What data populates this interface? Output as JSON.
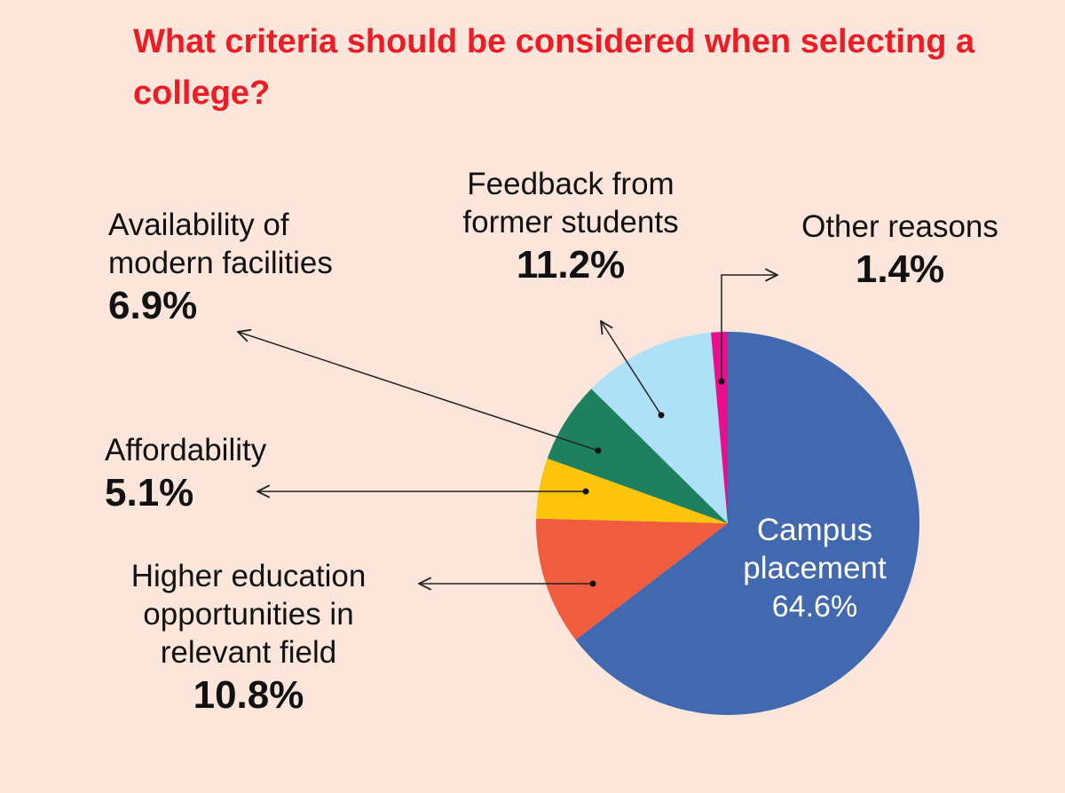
{
  "title": "What criteria should be considered when selecting a college?",
  "colors": {
    "background": "#fce6dc",
    "title": "#ee1c25"
  },
  "chart_data": {
    "type": "pie",
    "title": "What criteria should be considered when selecting a college?",
    "start_angle_deg": 0,
    "direction": "clockwise",
    "slices": [
      {
        "label": "Campus placement",
        "value": 64.6,
        "display": "64.6%",
        "color": "#4268b0"
      },
      {
        "label": "Higher education opportunities in relevant field",
        "value": 10.8,
        "display": "10.8%",
        "color": "#ef5c3e"
      },
      {
        "label": "Affordability",
        "value": 5.1,
        "display": "5.1%",
        "color": "#fcc40a"
      },
      {
        "label": "Availability of modern facilities",
        "value": 6.9,
        "display": "6.9%",
        "color": "#1f8060"
      },
      {
        "label": "Feedback from former students",
        "value": 11.2,
        "display": "11.2%",
        "color": "#aee0f8"
      },
      {
        "label": "Other reasons",
        "value": 1.4,
        "display": "1.4%",
        "color": "#e80e8c"
      }
    ]
  },
  "labels": {
    "campus_name": "Campus\nplacement",
    "campus_value": "64.6%",
    "higher_name": "Higher education\nopportunities in\nrelevant field",
    "higher_value": "10.8%",
    "afford_name": "Affordability",
    "afford_value": "5.1%",
    "facilities_name": "Availability of\nmodern facilities",
    "facilities_value": "6.9%",
    "feedback_name": "Feedback from\nformer students",
    "feedback_value": "11.2%",
    "other_name": "Other reasons",
    "other_value": "1.4%"
  }
}
